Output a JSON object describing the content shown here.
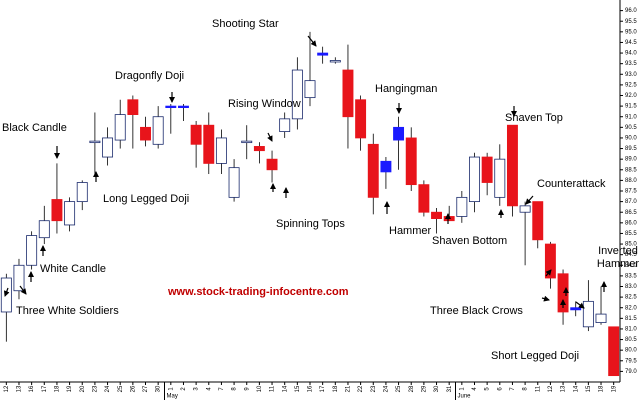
{
  "chart_data": {
    "type": "candlestick",
    "categories": [
      "12",
      "13",
      "16",
      "17",
      "18",
      "19",
      "20",
      "23",
      "24",
      "25",
      "26",
      "27",
      "30",
      "1",
      "2",
      "3",
      "4",
      "7",
      "8",
      "9",
      "10",
      "11",
      "14",
      "15",
      "16",
      "17",
      "18",
      "21",
      "22",
      "23",
      "24",
      "25",
      "28",
      "29",
      "30",
      "31",
      "1",
      "4",
      "5",
      "6",
      "7",
      "8",
      "11",
      "12",
      "13",
      "14",
      "15",
      "18",
      "19"
    ],
    "month_labels": [
      {
        "label": "May",
        "from": 13
      },
      {
        "label": "June",
        "from": 36
      }
    ],
    "open": [
      81.8,
      82.8,
      84.0,
      85.3,
      87.1,
      85.9,
      87.0,
      89.8,
      89.1,
      89.9,
      91.8,
      90.5,
      89.7,
      91.45,
      91.5,
      90.6,
      90.6,
      88.8,
      87.2,
      89.8,
      89.6,
      89.0,
      90.3,
      90.9,
      91.9,
      93.9,
      93.6,
      93.2,
      91.8,
      89.7,
      88.9,
      90.5,
      90.0,
      87.8,
      86.5,
      86.3,
      86.3,
      87.0,
      89.1,
      87.2,
      90.6,
      86.5,
      87.0,
      85.0,
      83.6,
      82.0,
      81.1,
      81.3,
      81.1
    ],
    "high": [
      83.6,
      84.3,
      85.6,
      86.8,
      88.8,
      87.2,
      88.0,
      91.2,
      90.5,
      91.8,
      92.0,
      91.0,
      91.5,
      91.6,
      91.6,
      90.8,
      91.2,
      90.4,
      89.0,
      90.6,
      89.8,
      89.4,
      91.2,
      93.8,
      95.0,
      94.3,
      93.8,
      94.4,
      92.0,
      90.2,
      89.1,
      91.0,
      90.5,
      88.0,
      86.7,
      86.8,
      87.5,
      89.3,
      89.3,
      89.7,
      90.6,
      87.0,
      87.0,
      85.1,
      83.8,
      82.3,
      83.3,
      83.0,
      81.1
    ],
    "low": [
      80.4,
      82.4,
      83.8,
      85.0,
      85.5,
      85.6,
      86.6,
      88.2,
      88.7,
      89.5,
      89.5,
      89.6,
      89.5,
      90.2,
      90.8,
      88.6,
      88.3,
      88.3,
      87.0,
      89.0,
      88.8,
      87.9,
      90.0,
      90.4,
      91.5,
      93.5,
      93.5,
      89.5,
      89.4,
      86.4,
      87.6,
      88.5,
      87.5,
      86.3,
      85.5,
      86.1,
      86.0,
      86.5,
      87.3,
      86.8,
      86.3,
      84.0,
      84.8,
      82.9,
      81.2,
      81.6,
      80.9,
      81.2,
      78.8
    ],
    "close": [
      83.4,
      84.0,
      85.4,
      86.1,
      86.1,
      87.0,
      87.9,
      89.85,
      90.0,
      91.1,
      91.1,
      89.9,
      91.0,
      91.5,
      91.45,
      89.7,
      88.8,
      90.0,
      88.6,
      89.85,
      89.4,
      88.5,
      90.9,
      93.2,
      92.7,
      94.0,
      93.65,
      91.0,
      90.0,
      87.2,
      88.4,
      89.9,
      87.8,
      86.5,
      86.2,
      86.1,
      87.2,
      89.1,
      87.9,
      89.0,
      86.8,
      86.8,
      85.2,
      83.4,
      81.8,
      81.9,
      82.3,
      81.7,
      78.8
    ],
    "doji": [
      13,
      14,
      25,
      30,
      31,
      45
    ],
    "up_color": "#ffffff",
    "down_color": "#e8141b",
    "doji_color": "#1a1aff",
    "ylim": [
      78.5,
      96.5
    ],
    "yticks": [
      {
        "value": 79,
        "label": "79.0"
      },
      79.5,
      {
        "value": 80,
        "label": "80.0"
      },
      80.5,
      {
        "value": 81,
        "label": "81.0"
      },
      81.5,
      {
        "value": 82,
        "label": "82.0"
      },
      82.5,
      {
        "value": 83,
        "label": "83.0"
      },
      83.5,
      {
        "value": 84,
        "label": "84.0"
      },
      84.5,
      {
        "value": 85,
        "label": "85.0"
      },
      85.5,
      {
        "value": 86,
        "label": "86.0"
      },
      86.5,
      {
        "value": 87,
        "label": "87.0"
      },
      87.5,
      {
        "value": 88,
        "label": "88.0"
      },
      88.5,
      {
        "value": 89,
        "label": "89.0"
      },
      89.5,
      {
        "value": 90,
        "label": "90.0"
      },
      90.5,
      {
        "value": 91,
        "label": "91.0"
      },
      91.5,
      {
        "value": 92,
        "label": "92.0"
      },
      92.5,
      {
        "value": 93,
        "label": "93.0"
      },
      93.5,
      {
        "value": 94,
        "label": "94.0"
      },
      94.5,
      {
        "value": 95,
        "label": "95.0"
      },
      95.5,
      {
        "value": 96,
        "label": "96.0"
      }
    ],
    "annotations": [
      "Shooting Star",
      "Dragonfly Doji",
      "Rising Window",
      "Black Candle",
      "Long Legged Doji",
      "White Candle",
      "Three White Soldiers",
      "Spinning Tops",
      "Hangingman",
      "Hammer",
      "Shaven Top",
      "Shaven Bottom",
      "Counterattack",
      "Three Black Crows",
      "Inverted Hammer",
      "Short Legged Doji"
    ],
    "website": "www.stock-trading-infocentre.com"
  }
}
